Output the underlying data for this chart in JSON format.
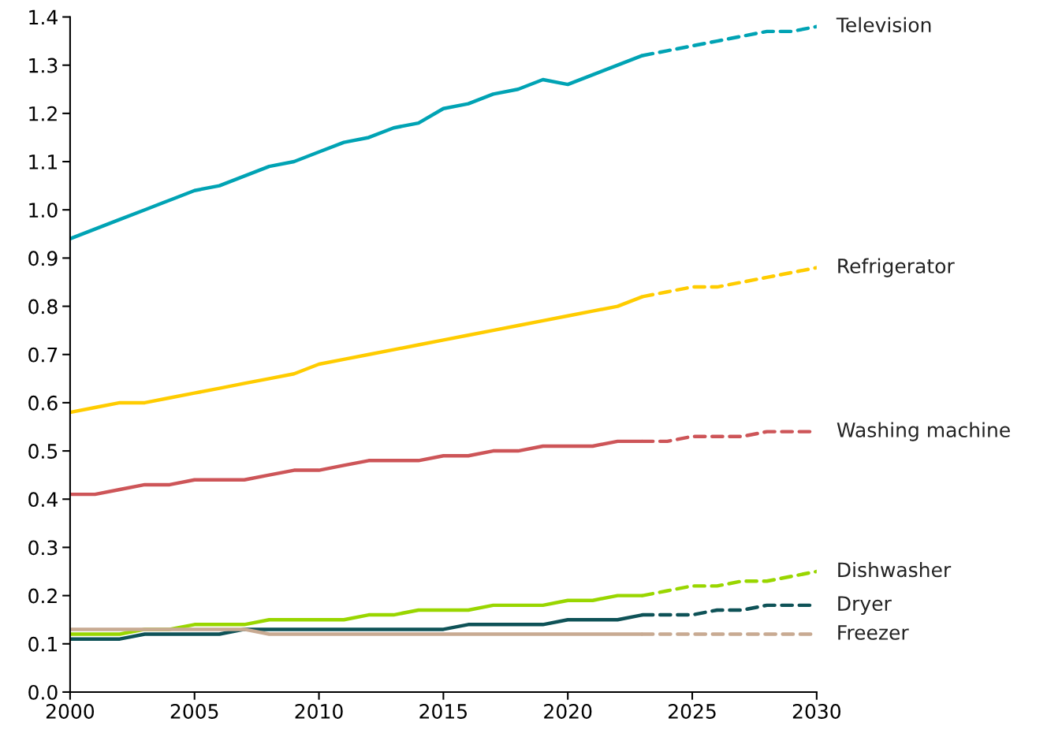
{
  "chart_data": {
    "type": "line",
    "xlim": [
      2000,
      2030
    ],
    "xticks": [
      2000,
      2005,
      2010,
      2015,
      2020,
      2025,
      2030
    ],
    "ylim": [
      0,
      1.4
    ],
    "yticks": [
      {
        "value": 0,
        "label": "0.0"
      },
      0.1,
      0.2,
      0.3,
      0.4,
      0.5,
      0.6,
      0.7,
      0.8,
      0.9,
      {
        "value": 1,
        "label": "1.0"
      },
      1.1,
      1.2,
      1.3,
      1.4
    ],
    "grid": false,
    "legend": false,
    "marker": "none",
    "series": [
      {
        "name": "Television",
        "color": "#00a3b4",
        "line_style": "solid",
        "x": [
          2000,
          2001,
          2002,
          2003,
          2004,
          2005,
          2006,
          2007,
          2008,
          2009,
          2010,
          2011,
          2012,
          2013,
          2014,
          2015,
          2016,
          2017,
          2018,
          2019,
          2020,
          2021,
          2022,
          2023
        ],
        "values": [
          0.94,
          0.96,
          0.98,
          1.0,
          1.02,
          1.04,
          1.05,
          1.07,
          1.09,
          1.1,
          1.12,
          1.14,
          1.15,
          1.17,
          1.18,
          1.21,
          1.22,
          1.24,
          1.25,
          1.27,
          1.26,
          1.28,
          1.3,
          1.32
        ]
      },
      {
        "color": "#00a3b4",
        "line_style": "dashed",
        "x": [
          2023,
          2024,
          2025,
          2026,
          2027,
          2028,
          2029,
          2030
        ],
        "values": [
          1.32,
          1.33,
          1.34,
          1.35,
          1.36,
          1.37,
          1.37,
          1.38
        ]
      },
      {
        "name": "Refrigerator",
        "color": "#ffcc00",
        "line_style": "solid",
        "x": [
          2000,
          2001,
          2002,
          2003,
          2004,
          2005,
          2006,
          2007,
          2008,
          2009,
          2010,
          2011,
          2012,
          2013,
          2014,
          2015,
          2016,
          2017,
          2018,
          2019,
          2020,
          2021,
          2022,
          2023
        ],
        "values": [
          0.58,
          0.59,
          0.6,
          0.6,
          0.61,
          0.62,
          0.63,
          0.64,
          0.65,
          0.66,
          0.68,
          0.69,
          0.7,
          0.71,
          0.72,
          0.73,
          0.74,
          0.75,
          0.76,
          0.77,
          0.78,
          0.79,
          0.8,
          0.82
        ]
      },
      {
        "color": "#ffcc00",
        "line_style": "dashed",
        "x": [
          2023,
          2024,
          2025,
          2026,
          2027,
          2028,
          2029,
          2030
        ],
        "values": [
          0.82,
          0.83,
          0.84,
          0.84,
          0.85,
          0.86,
          0.87,
          0.88
        ]
      },
      {
        "name": "Washing machine",
        "color": "#cd5558",
        "line_style": "solid",
        "x": [
          2000,
          2001,
          2002,
          2003,
          2004,
          2005,
          2006,
          2007,
          2008,
          2009,
          2010,
          2011,
          2012,
          2013,
          2014,
          2015,
          2016,
          2017,
          2018,
          2019,
          2020,
          2021,
          2022,
          2023
        ],
        "values": [
          0.41,
          0.41,
          0.42,
          0.43,
          0.43,
          0.44,
          0.44,
          0.44,
          0.45,
          0.46,
          0.46,
          0.47,
          0.48,
          0.48,
          0.48,
          0.49,
          0.49,
          0.5,
          0.5,
          0.51,
          0.51,
          0.51,
          0.52,
          0.52
        ]
      },
      {
        "color": "#cd5558",
        "line_style": "dashed",
        "x": [
          2023,
          2024,
          2025,
          2026,
          2027,
          2028,
          2029,
          2030
        ],
        "values": [
          0.52,
          0.52,
          0.53,
          0.53,
          0.53,
          0.54,
          0.54,
          0.54
        ]
      },
      {
        "name": "Dishwasher",
        "color": "#99d600",
        "line_style": "solid",
        "x": [
          2000,
          2001,
          2002,
          2003,
          2004,
          2005,
          2006,
          2007,
          2008,
          2009,
          2010,
          2011,
          2012,
          2013,
          2014,
          2015,
          2016,
          2017,
          2018,
          2019,
          2020,
          2021,
          2022,
          2023
        ],
        "values": [
          0.12,
          0.12,
          0.12,
          0.13,
          0.13,
          0.14,
          0.14,
          0.14,
          0.15,
          0.15,
          0.15,
          0.15,
          0.16,
          0.16,
          0.17,
          0.17,
          0.17,
          0.18,
          0.18,
          0.18,
          0.19,
          0.19,
          0.2,
          0.2
        ]
      },
      {
        "color": "#99d600",
        "line_style": "dashed",
        "x": [
          2023,
          2024,
          2025,
          2026,
          2027,
          2028,
          2029,
          2030
        ],
        "values": [
          0.2,
          0.21,
          0.22,
          0.22,
          0.23,
          0.23,
          0.24,
          0.25
        ]
      },
      {
        "name": "Dryer",
        "color": "#0e5257",
        "line_style": "solid",
        "x": [
          2000,
          2001,
          2002,
          2003,
          2004,
          2005,
          2006,
          2007,
          2008,
          2009,
          2010,
          2011,
          2012,
          2013,
          2014,
          2015,
          2016,
          2017,
          2018,
          2019,
          2020,
          2021,
          2022,
          2023
        ],
        "values": [
          0.11,
          0.11,
          0.11,
          0.12,
          0.12,
          0.12,
          0.12,
          0.13,
          0.13,
          0.13,
          0.13,
          0.13,
          0.13,
          0.13,
          0.13,
          0.13,
          0.14,
          0.14,
          0.14,
          0.14,
          0.15,
          0.15,
          0.15,
          0.16
        ]
      },
      {
        "color": "#0e5257",
        "line_style": "dashed",
        "x": [
          2023,
          2024,
          2025,
          2026,
          2027,
          2028,
          2029,
          2030
        ],
        "values": [
          0.16,
          0.16,
          0.16,
          0.17,
          0.17,
          0.18,
          0.18,
          0.18
        ]
      },
      {
        "name": "Freezer",
        "color": "#c8aa92",
        "line_style": "solid",
        "x": [
          2000,
          2001,
          2002,
          2003,
          2004,
          2005,
          2006,
          2007,
          2008,
          2009,
          2010,
          2011,
          2012,
          2013,
          2014,
          2015,
          2016,
          2017,
          2018,
          2019,
          2020,
          2021,
          2022,
          2023
        ],
        "values": [
          0.13,
          0.13,
          0.13,
          0.13,
          0.13,
          0.13,
          0.13,
          0.13,
          0.12,
          0.12,
          0.12,
          0.12,
          0.12,
          0.12,
          0.12,
          0.12,
          0.12,
          0.12,
          0.12,
          0.12,
          0.12,
          0.12,
          0.12,
          0.12
        ]
      },
      {
        "color": "#c8aa92",
        "line_style": "dashed",
        "x": [
          2023,
          2024,
          2025,
          2026,
          2027,
          2028,
          2029,
          2030
        ],
        "values": [
          0.12,
          0.12,
          0.12,
          0.12,
          0.12,
          0.12,
          0.12,
          0.12
        ]
      }
    ]
  }
}
